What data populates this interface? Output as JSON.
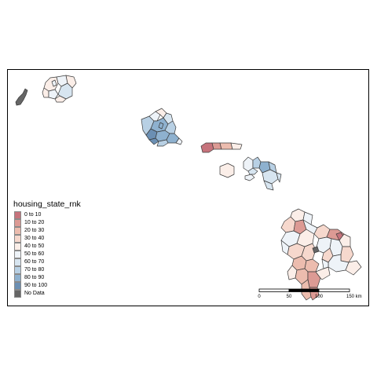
{
  "legend": {
    "title": "housing_state_rnk",
    "items": [
      {
        "label": "0 to 10",
        "color": "#c6737c"
      },
      {
        "label": "10 to 20",
        "color": "#dc9a94"
      },
      {
        "label": "20 to 30",
        "color": "#ecbcae"
      },
      {
        "label": "30 to 40",
        "color": "#f6d8cd"
      },
      {
        "label": "40 to 50",
        "color": "#fbeee8"
      },
      {
        "label": "50 to 60",
        "color": "#eef3f8"
      },
      {
        "label": "60 to 70",
        "color": "#d7e5f0"
      },
      {
        "label": "70 to 80",
        "color": "#b8d0e4"
      },
      {
        "label": "80 to 90",
        "color": "#8eb1cf"
      },
      {
        "label": "90 to 100",
        "color": "#6b8fb3"
      },
      {
        "label": "No Data",
        "color": "#666666"
      }
    ]
  },
  "scale_bar": {
    "labels": [
      "0",
      "50",
      "100",
      "150 km"
    ]
  }
}
